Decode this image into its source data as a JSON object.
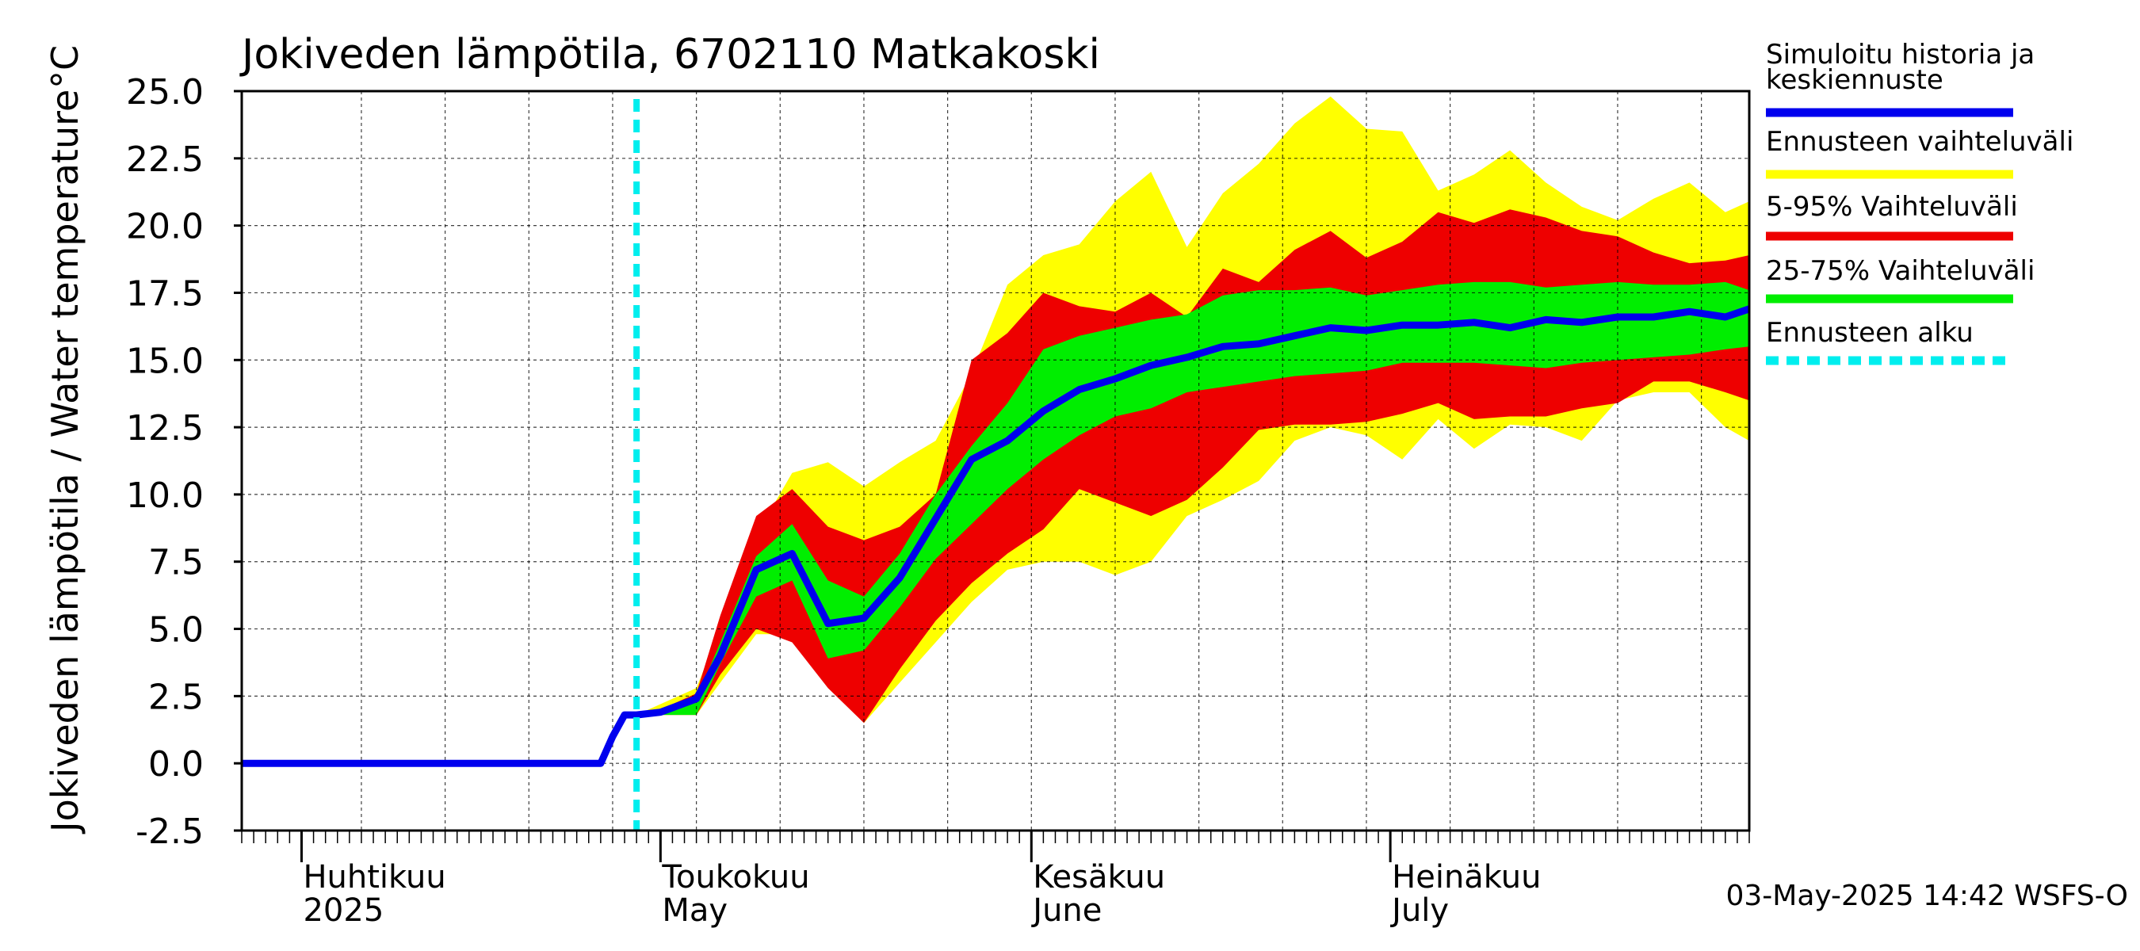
{
  "chart_data": {
    "type": "area",
    "title": "Jokiveden lämpötila, 6702110 Matkakoski",
    "ylabel": "Jokiveden lämpötila / Water temperature",
    "yunit": "°C",
    "ylim": [
      -2.5,
      25.0
    ],
    "yticks": [
      "25.0",
      "22.5",
      "20.0",
      "17.5",
      "15.0",
      "12.5",
      "10.0",
      "7.5",
      "5.0",
      "2.5",
      "0.0",
      "-2.5"
    ],
    "xlim": [
      "2025-03-27",
      "2025-07-31"
    ],
    "month_labels": [
      {
        "fi": "Huhtikuu",
        "en": "2025",
        "date": "2025-04-01"
      },
      {
        "fi": "Toukokuu",
        "en": "May",
        "date": "2025-05-01"
      },
      {
        "fi": "Kesäkuu",
        "en": "June",
        "date": "2025-06-01"
      },
      {
        "fi": "Heinäkuu",
        "en": "July",
        "date": "2025-07-01"
      }
    ],
    "grid": true,
    "forecast_start": "2025-04-29",
    "legend": [
      {
        "label": "Simuloitu historia ja keskiennuste",
        "color": "#0000ee",
        "style": "line"
      },
      {
        "label": "Ennusteen vaihteluväli",
        "color": "#ffff00",
        "style": "band"
      },
      {
        "label": "5-95% Vaihteluväli",
        "color": "#ee0000",
        "style": "band"
      },
      {
        "label": "25-75% Vaihteluväli",
        "color": "#00ee00",
        "style": "band"
      },
      {
        "label": "Ennusteen alku",
        "color": "#00eeee",
        "style": "dashed"
      }
    ],
    "timestamp": "03-May-2025 14:42 WSFS-O",
    "x": [
      "2025-04-28",
      "2025-04-29",
      "2025-05-01",
      "2025-05-04",
      "2025-05-06",
      "2025-05-09",
      "2025-05-12",
      "2025-05-15",
      "2025-05-18",
      "2025-05-21",
      "2025-05-24",
      "2025-05-27",
      "2025-05-30",
      "2025-06-02",
      "2025-06-05",
      "2025-06-08",
      "2025-06-11",
      "2025-06-14",
      "2025-06-17",
      "2025-06-20",
      "2025-06-23",
      "2025-06-26",
      "2025-06-29",
      "2025-07-02",
      "2025-07-05",
      "2025-07-08",
      "2025-07-11",
      "2025-07-14",
      "2025-07-17",
      "2025-07-20",
      "2025-07-23",
      "2025-07-26",
      "2025-07-29",
      "2025-07-31"
    ],
    "series": [
      {
        "name": "Ennusteen vaihteluväli",
        "color": "#ffff00",
        "upper": [
          1.8,
          1.8,
          2.2,
          2.8,
          5.0,
          8.5,
          10.8,
          11.2,
          10.3,
          11.2,
          12.0,
          14.5,
          17.8,
          18.9,
          19.3,
          20.9,
          22.0,
          19.2,
          21.2,
          22.3,
          23.8,
          24.8,
          23.6,
          23.5,
          21.3,
          21.9,
          22.8,
          21.6,
          20.7,
          20.2,
          21.0,
          21.6,
          20.5,
          20.9
        ],
        "lower": [
          1.8,
          1.8,
          1.8,
          1.8,
          3.0,
          4.8,
          4.8,
          3.5,
          1.5,
          3.0,
          4.5,
          6.0,
          7.2,
          7.5,
          7.5,
          7.0,
          7.5,
          9.2,
          9.8,
          10.5,
          12.0,
          12.5,
          12.2,
          11.3,
          12.8,
          11.7,
          12.6,
          12.5,
          12.0,
          13.5,
          13.8,
          13.8,
          12.5,
          12.0
        ]
      },
      {
        "name": "5-95% Vaihteluväli",
        "color": "#ee0000",
        "upper": [
          1.8,
          1.8,
          2.0,
          2.6,
          5.5,
          9.2,
          10.2,
          8.8,
          8.3,
          8.8,
          10.0,
          15.0,
          16.0,
          17.5,
          17.0,
          16.8,
          17.5,
          16.6,
          18.4,
          17.9,
          19.1,
          19.8,
          18.8,
          19.4,
          20.5,
          20.1,
          20.6,
          20.3,
          19.8,
          19.6,
          19.0,
          18.6,
          18.7,
          18.9
        ],
        "lower": [
          1.8,
          1.8,
          1.8,
          1.8,
          3.3,
          5.0,
          4.5,
          2.8,
          1.5,
          3.5,
          5.3,
          6.7,
          7.8,
          8.7,
          10.2,
          9.7,
          9.2,
          9.8,
          11.0,
          12.4,
          12.6,
          12.6,
          12.7,
          13.0,
          13.4,
          12.8,
          12.9,
          12.9,
          13.2,
          13.4,
          14.2,
          14.2,
          13.8,
          13.5
        ]
      },
      {
        "name": "25-75% Vaihteluväli",
        "color": "#00ee00",
        "upper": [
          1.8,
          1.8,
          1.9,
          2.4,
          4.5,
          7.7,
          8.9,
          6.8,
          6.2,
          7.8,
          10.0,
          11.8,
          13.4,
          15.4,
          15.9,
          16.2,
          16.5,
          16.7,
          17.4,
          17.6,
          17.6,
          17.7,
          17.4,
          17.6,
          17.8,
          17.9,
          17.9,
          17.7,
          17.8,
          17.9,
          17.8,
          17.8,
          17.9,
          17.6
        ]
      },
      {
        "name": "",
        "color": "#00ee00",
        "lower": [
          1.8,
          1.8,
          1.8,
          1.8,
          3.7,
          6.2,
          6.8,
          3.9,
          4.2,
          5.8,
          7.6,
          8.9,
          10.2,
          11.3,
          12.2,
          12.9,
          13.2,
          13.8,
          14.0,
          14.2,
          14.4,
          14.5,
          14.6,
          14.9,
          14.9,
          14.9,
          14.8,
          14.7,
          14.9,
          15.0,
          15.1,
          15.2,
          15.4,
          15.5
        ]
      },
      {
        "name": "Simuloitu historia ja keskiennuste",
        "color": "#0000ee",
        "history_x": [
          "2025-03-27",
          "2025-04-26",
          "2025-04-27",
          "2025-04-28"
        ],
        "history": [
          0.0,
          0.0,
          1.0,
          1.8
        ],
        "values": [
          1.8,
          1.8,
          1.9,
          2.4,
          4.0,
          7.2,
          7.8,
          5.2,
          5.4,
          6.9,
          9.1,
          11.3,
          12.0,
          13.1,
          13.9,
          14.3,
          14.8,
          15.1,
          15.5,
          15.6,
          15.9,
          16.2,
          16.1,
          16.3,
          16.3,
          16.4,
          16.2,
          16.5,
          16.4,
          16.6,
          16.6,
          16.8,
          16.6,
          16.9
        ]
      }
    ]
  }
}
